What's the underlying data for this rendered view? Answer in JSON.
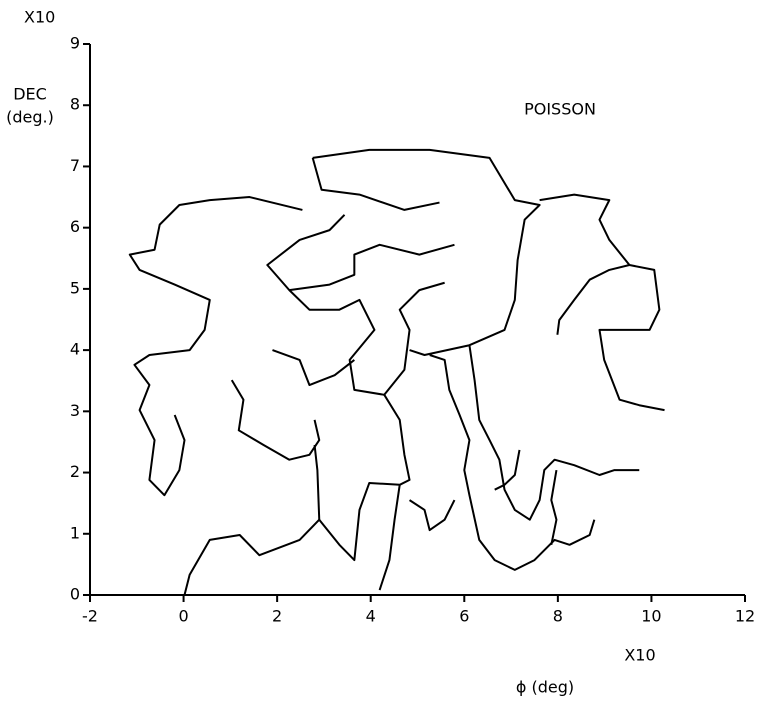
{
  "chart_data": {
    "type": "line",
    "annotation": "POISSON",
    "x_label": "ϕ (deg)",
    "y_label": [
      "DEC",
      "(deg.)"
    ],
    "x_multiplier": "X10",
    "y_multiplier": "X10",
    "color": "#000000",
    "xlim": [
      -2,
      12
    ],
    "ylim": [
      0,
      9
    ],
    "xticks": [
      -2,
      0,
      2,
      4,
      6,
      8,
      10,
      12
    ],
    "yticks": [
      0,
      1,
      2,
      3,
      4,
      5,
      6,
      7,
      8,
      9
    ],
    "grid": false,
    "series": [
      {
        "x": [
          2.54,
          1.41,
          0.56,
          -0.09,
          -0.51,
          -0.62,
          -1.15,
          -0.94,
          -0.19,
          0.56,
          0.45,
          0.13,
          -0.73,
          -1.05,
          -0.73,
          -0.94,
          -0.62,
          -0.73,
          -0.41,
          -0.09,
          0.02,
          -0.19
        ],
        "values": [
          6.29,
          6.5,
          6.45,
          6.37,
          6.05,
          5.64,
          5.56,
          5.31,
          5.07,
          4.82,
          4.33,
          4.0,
          3.92,
          3.76,
          3.43,
          3.02,
          2.53,
          1.88,
          1.63,
          2.04,
          2.53,
          2.94
        ]
      },
      {
        "x": [
          2.76,
          2.95,
          3.76,
          4.72,
          5.47
        ],
        "values": [
          7.14,
          6.62,
          6.54,
          6.29,
          6.41
        ]
      },
      {
        "x": [
          2.76,
          3.97,
          5.26,
          6.54,
          7.08,
          7.61,
          7.29,
          7.14,
          7.08,
          6.86,
          6.11,
          5.15,
          4.83
        ],
        "values": [
          7.14,
          7.27,
          7.27,
          7.14,
          6.45,
          6.37,
          6.13,
          5.47,
          4.82,
          4.33,
          4.08,
          3.92,
          4.0
        ]
      },
      {
        "x": [
          7.61,
          8.35,
          9.1,
          8.89,
          9.1,
          9.53,
          10.06,
          10.17,
          9.96,
          8.89,
          8.99,
          9.32,
          9.74,
          10.28
        ],
        "values": [
          6.45,
          6.54,
          6.45,
          6.13,
          5.8,
          5.39,
          5.31,
          4.66,
          4.33,
          4.33,
          3.84,
          3.19,
          3.1,
          3.02
        ]
      },
      {
        "x": [
          9.53,
          9.1,
          8.68,
          8.35,
          8.03,
          7.99
        ],
        "values": [
          5.39,
          5.31,
          5.15,
          4.82,
          4.49,
          4.25
        ]
      },
      {
        "x": [
          3.44,
          3.12,
          2.48,
          1.79,
          2.26,
          2.69,
          3.33,
          3.76,
          4.08,
          3.55,
          3.65,
          4.29,
          4.72,
          4.83,
          4.62,
          5.04,
          5.58
        ],
        "values": [
          6.21,
          5.96,
          5.8,
          5.39,
          4.98,
          4.66,
          4.66,
          4.82,
          4.33,
          3.84,
          3.35,
          3.27,
          3.68,
          4.33,
          4.66,
          4.98,
          5.1
        ]
      },
      {
        "x": [
          5.79,
          5.04,
          4.19,
          3.65,
          3.65,
          3.12,
          2.26
        ],
        "values": [
          5.72,
          5.56,
          5.72,
          5.56,
          5.23,
          5.07,
          4.98
        ]
      },
      {
        "x": [
          1.9,
          2.48,
          2.69,
          3.23,
          3.65
        ],
        "values": [
          4.0,
          3.84,
          3.43,
          3.59,
          3.84
        ]
      },
      {
        "x": [
          1.03,
          1.28,
          1.18,
          1.71,
          2.26,
          2.69,
          2.9,
          2.8
        ],
        "values": [
          3.51,
          3.19,
          2.69,
          2.45,
          2.21,
          2.29,
          2.53,
          2.86
        ]
      },
      {
        "x": [
          4.29,
          4.62,
          4.72,
          4.83,
          4.62,
          3.97,
          3.76,
          3.65,
          3.33,
          2.9,
          2.48,
          1.62,
          1.2,
          0.56,
          0.13,
          0.02
        ],
        "values": [
          3.27,
          2.86,
          2.29,
          1.88,
          1.8,
          1.83,
          1.39,
          0.57,
          0.82,
          1.23,
          0.9,
          0.65,
          0.98,
          0.9,
          0.33,
          0
        ]
      },
      {
        "x": [
          2.8,
          2.86,
          2.9
        ],
        "values": [
          2.45,
          2.04,
          1.23
        ]
      },
      {
        "x": [
          4.62,
          4.51,
          4.4,
          4.19
        ],
        "values": [
          1.8,
          1.23,
          0.57,
          0.08
        ]
      },
      {
        "x": [
          4.83,
          5.15,
          5.26,
          5.58,
          5.79
        ],
        "values": [
          1.55,
          1.39,
          1.06,
          1.23,
          1.55
        ]
      },
      {
        "x": [
          5.26,
          5.58,
          5.68,
          5.9,
          6.11,
          6.0,
          6.11,
          6.32,
          6.65,
          7.08,
          7.5,
          7.93,
          8.25,
          8.68,
          8.78
        ],
        "values": [
          3.92,
          3.84,
          3.35,
          2.94,
          2.53,
          2.04,
          1.63,
          0.9,
          0.57,
          0.41,
          0.57,
          0.9,
          0.82,
          0.98,
          1.23
        ]
      },
      {
        "x": [
          6.11,
          6.22,
          6.32,
          6.54,
          6.75,
          6.86,
          7.08,
          7.4,
          7.61,
          7.71,
          7.93,
          8.35,
          8.89,
          9.21,
          9.74
        ],
        "values": [
          4.08,
          3.51,
          2.86,
          2.53,
          2.21,
          1.72,
          1.39,
          1.23,
          1.55,
          2.04,
          2.21,
          2.12,
          1.96,
          2.04,
          2.04
        ]
      },
      {
        "x": [
          7.18,
          7.08,
          6.86,
          6.65
        ],
        "values": [
          2.37,
          1.96,
          1.8,
          1.72
        ]
      },
      {
        "x": [
          7.97,
          7.86,
          7.97,
          7.86
        ],
        "values": [
          2.04,
          1.55,
          1.23,
          0.82
        ]
      }
    ]
  }
}
